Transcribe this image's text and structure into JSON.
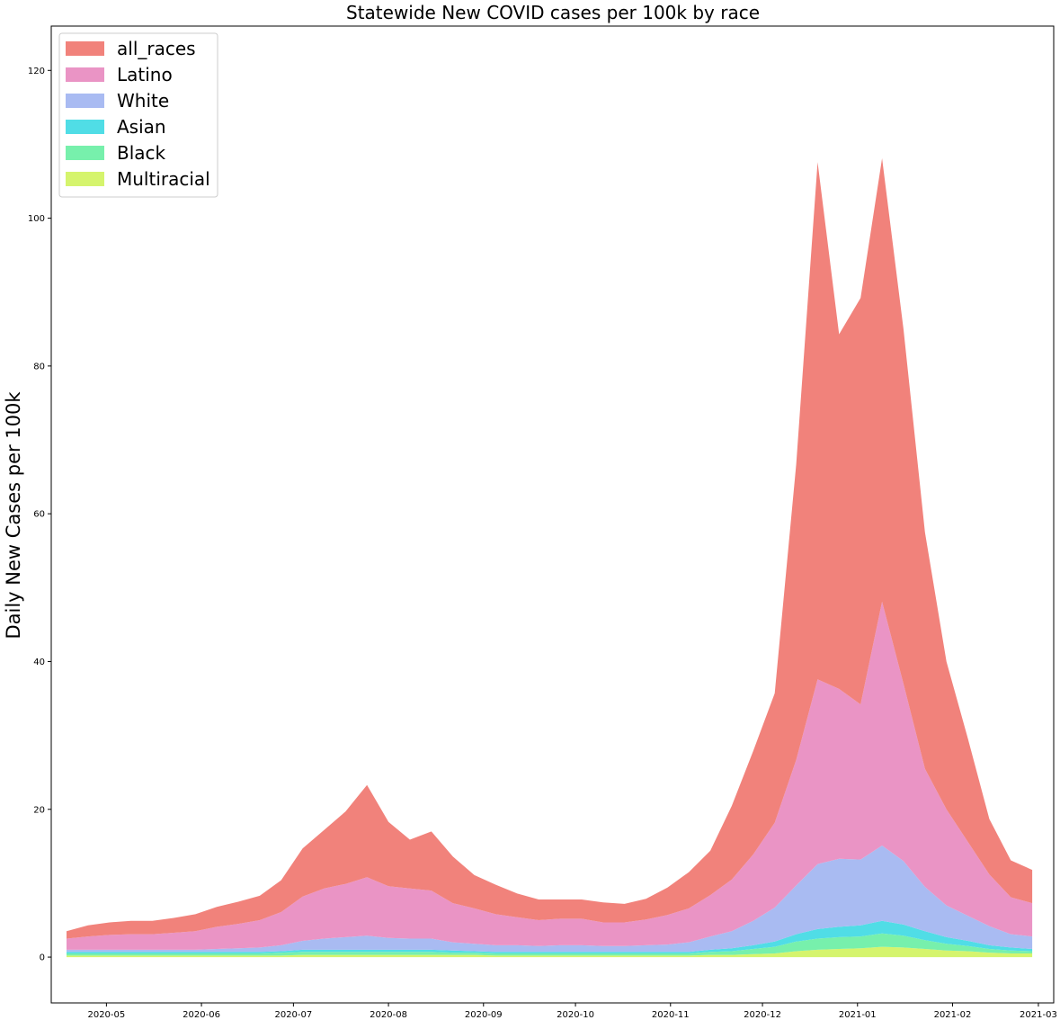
{
  "chart_data": {
    "type": "area",
    "stacked": true,
    "title": "Statewide New COVID cases per 100k by race",
    "xlabel": "",
    "ylabel": "Daily New Cases per 100k",
    "xlim": [
      "2020-04-13",
      "2021-03-06"
    ],
    "ylim": [
      -6.2,
      126
    ],
    "x_ticks": [
      "2020-05",
      "2020-06",
      "2020-07",
      "2020-08",
      "2020-09",
      "2020-10",
      "2020-11",
      "2020-12",
      "2021-01",
      "2021-02",
      "2021-03"
    ],
    "y_ticks": [
      0,
      20,
      40,
      60,
      80,
      100,
      120
    ],
    "legend_position": "upper-left",
    "legend_order": [
      "all_races",
      "Latino",
      "White",
      "Asian",
      "Black",
      "Multiracial"
    ],
    "x": [
      "2020-04-18",
      "2020-04-25",
      "2020-05-02",
      "2020-05-09",
      "2020-05-16",
      "2020-05-23",
      "2020-05-30",
      "2020-06-06",
      "2020-06-13",
      "2020-06-20",
      "2020-06-27",
      "2020-07-04",
      "2020-07-11",
      "2020-07-18",
      "2020-07-25",
      "2020-08-01",
      "2020-08-08",
      "2020-08-15",
      "2020-08-22",
      "2020-08-29",
      "2020-09-05",
      "2020-09-12",
      "2020-09-19",
      "2020-09-26",
      "2020-10-03",
      "2020-10-10",
      "2020-10-17",
      "2020-10-24",
      "2020-10-31",
      "2020-11-07",
      "2020-11-14",
      "2020-11-21",
      "2020-11-28",
      "2020-12-05",
      "2020-12-12",
      "2020-12-19",
      "2020-12-26",
      "2021-01-02",
      "2021-01-09",
      "2021-01-16",
      "2021-01-23",
      "2021-01-30",
      "2021-02-06",
      "2021-02-13",
      "2021-02-20",
      "2021-02-27"
    ],
    "series": [
      {
        "name": "Multiracial",
        "color": "#d5f46d",
        "values": [
          0.2,
          0.2,
          0.2,
          0.2,
          0.2,
          0.2,
          0.2,
          0.2,
          0.2,
          0.2,
          0.2,
          0.3,
          0.3,
          0.3,
          0.3,
          0.3,
          0.3,
          0.3,
          0.3,
          0.3,
          0.2,
          0.2,
          0.2,
          0.2,
          0.2,
          0.2,
          0.2,
          0.2,
          0.2,
          0.2,
          0.3,
          0.3,
          0.4,
          0.5,
          0.8,
          1.0,
          1.1,
          1.2,
          1.4,
          1.3,
          1.1,
          0.9,
          0.8,
          0.6,
          0.5,
          0.5
        ]
      },
      {
        "name": "Black",
        "color": "#77f0ac",
        "values": [
          0.3,
          0.3,
          0.3,
          0.3,
          0.3,
          0.3,
          0.3,
          0.3,
          0.3,
          0.3,
          0.4,
          0.4,
          0.4,
          0.4,
          0.4,
          0.4,
          0.4,
          0.4,
          0.3,
          0.3,
          0.3,
          0.3,
          0.3,
          0.3,
          0.3,
          0.3,
          0.3,
          0.3,
          0.3,
          0.3,
          0.4,
          0.5,
          0.7,
          0.9,
          1.3,
          1.5,
          1.6,
          1.6,
          1.8,
          1.6,
          1.2,
          0.9,
          0.7,
          0.5,
          0.4,
          0.3
        ]
      },
      {
        "name": "Asian",
        "color": "#50dde6",
        "values": [
          0.2,
          0.2,
          0.2,
          0.2,
          0.2,
          0.2,
          0.2,
          0.2,
          0.2,
          0.2,
          0.2,
          0.3,
          0.3,
          0.3,
          0.3,
          0.3,
          0.3,
          0.3,
          0.3,
          0.2,
          0.2,
          0.2,
          0.2,
          0.2,
          0.2,
          0.2,
          0.2,
          0.2,
          0.2,
          0.2,
          0.3,
          0.4,
          0.5,
          0.7,
          1.0,
          1.3,
          1.4,
          1.5,
          1.7,
          1.5,
          1.2,
          0.9,
          0.7,
          0.5,
          0.4,
          0.3
        ]
      },
      {
        "name": "White",
        "color": "#a9bbf2",
        "values": [
          0.3,
          0.3,
          0.3,
          0.3,
          0.3,
          0.3,
          0.3,
          0.4,
          0.5,
          0.6,
          0.8,
          1.2,
          1.5,
          1.7,
          1.9,
          1.6,
          1.5,
          1.5,
          1.1,
          1.0,
          0.9,
          0.9,
          0.8,
          0.9,
          0.9,
          0.8,
          0.8,
          0.9,
          1.0,
          1.3,
          1.8,
          2.3,
          3.3,
          4.6,
          6.6,
          8.8,
          9.2,
          8.9,
          10.2,
          8.6,
          6.0,
          4.3,
          3.4,
          2.6,
          1.8,
          1.7
        ]
      },
      {
        "name": "Latino",
        "color": "#ea94c5",
        "values": [
          1.5,
          1.8,
          2.0,
          2.1,
          2.1,
          2.3,
          2.5,
          3.0,
          3.3,
          3.7,
          4.5,
          6.0,
          6.8,
          7.2,
          7.9,
          7.0,
          6.8,
          6.5,
          5.3,
          4.8,
          4.2,
          3.8,
          3.5,
          3.6,
          3.6,
          3.2,
          3.2,
          3.5,
          4.0,
          4.6,
          5.6,
          7.0,
          9.0,
          11.5,
          17.0,
          25.0,
          23.0,
          21.0,
          33.0,
          24.0,
          16.0,
          13.0,
          10.0,
          7.0,
          5.0,
          4.5
        ]
      },
      {
        "name": "all_races",
        "color": "#f1827b",
        "values": [
          1.0,
          1.5,
          1.7,
          1.8,
          1.8,
          2.0,
          2.3,
          2.7,
          3.0,
          3.3,
          4.3,
          6.5,
          7.9,
          9.8,
          12.5,
          8.7,
          6.6,
          8.0,
          6.3,
          4.5,
          4.0,
          3.2,
          2.8,
          2.6,
          2.6,
          2.7,
          2.5,
          2.8,
          3.7,
          4.9,
          6.0,
          10.0,
          14.0,
          17.5,
          40.0,
          70.0,
          48.0,
          55.0,
          60.0,
          48.0,
          32.0,
          20.0,
          14.0,
          7.5,
          5.0,
          4.5
        ]
      }
    ]
  }
}
